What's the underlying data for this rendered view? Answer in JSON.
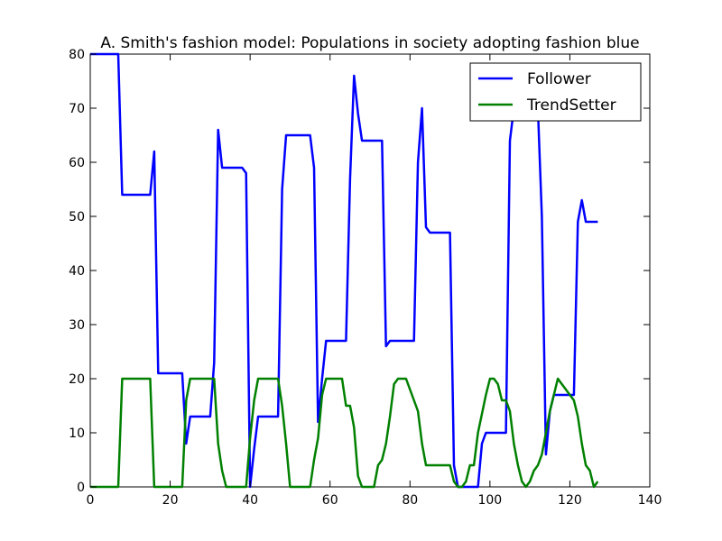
{
  "chart_data": {
    "type": "line",
    "title": "A. Smith's fashion model: Populations in society adopting fashion blue",
    "xlabel": "",
    "ylabel": "",
    "xlim": [
      0,
      140
    ],
    "ylim": [
      0,
      80
    ],
    "xticks": [
      0,
      20,
      40,
      60,
      80,
      100,
      120,
      140
    ],
    "yticks": [
      0,
      10,
      20,
      30,
      40,
      50,
      60,
      70,
      80
    ],
    "grid": false,
    "legend_position": "top-right",
    "series": [
      {
        "name": "Follower",
        "color": "#0000ff",
        "points": [
          [
            0,
            80
          ],
          [
            6,
            80
          ],
          [
            7,
            80
          ],
          [
            8,
            54
          ],
          [
            9,
            54
          ],
          [
            15,
            54
          ],
          [
            16,
            62
          ],
          [
            17,
            21
          ],
          [
            18,
            21
          ],
          [
            23,
            21
          ],
          [
            24,
            8
          ],
          [
            25,
            13
          ],
          [
            30,
            13
          ],
          [
            31,
            23
          ],
          [
            32,
            66
          ],
          [
            33,
            59
          ],
          [
            38,
            59
          ],
          [
            39,
            58
          ],
          [
            40,
            0
          ],
          [
            41,
            7
          ],
          [
            42,
            13
          ],
          [
            47,
            13
          ],
          [
            48,
            55
          ],
          [
            49,
            65
          ],
          [
            55,
            65
          ],
          [
            56,
            59
          ],
          [
            57,
            12
          ],
          [
            58,
            20
          ],
          [
            59,
            27
          ],
          [
            64,
            27
          ],
          [
            65,
            57
          ],
          [
            66,
            76
          ],
          [
            67,
            69
          ],
          [
            68,
            64
          ],
          [
            73,
            64
          ],
          [
            74,
            26
          ],
          [
            75,
            27
          ],
          [
            81,
            27
          ],
          [
            82,
            60
          ],
          [
            83,
            70
          ],
          [
            84,
            48
          ],
          [
            85,
            47
          ],
          [
            90,
            47
          ],
          [
            91,
            4
          ],
          [
            92,
            0
          ],
          [
            97,
            0
          ],
          [
            98,
            8
          ],
          [
            99,
            10
          ],
          [
            104,
            10
          ],
          [
            105,
            64
          ],
          [
            106,
            70
          ],
          [
            112,
            70
          ],
          [
            113,
            50
          ],
          [
            114,
            6
          ],
          [
            115,
            14
          ],
          [
            116,
            17
          ],
          [
            121,
            17
          ],
          [
            122,
            49
          ],
          [
            123,
            53
          ],
          [
            124,
            49
          ],
          [
            127,
            49
          ]
        ]
      },
      {
        "name": "TrendSetter",
        "color": "#008000",
        "points": [
          [
            0,
            0
          ],
          [
            7,
            0
          ],
          [
            8,
            20
          ],
          [
            15,
            20
          ],
          [
            16,
            0
          ],
          [
            23,
            0
          ],
          [
            24,
            16
          ],
          [
            25,
            20
          ],
          [
            31,
            20
          ],
          [
            32,
            8
          ],
          [
            33,
            3
          ],
          [
            34,
            0
          ],
          [
            39,
            0
          ],
          [
            40,
            9
          ],
          [
            41,
            16
          ],
          [
            42,
            20
          ],
          [
            47,
            20
          ],
          [
            48,
            15
          ],
          [
            49,
            8
          ],
          [
            50,
            0
          ],
          [
            55,
            0
          ],
          [
            56,
            5
          ],
          [
            57,
            9
          ],
          [
            58,
            17
          ],
          [
            59,
            20
          ],
          [
            63,
            20
          ],
          [
            64,
            15
          ],
          [
            65,
            15
          ],
          [
            66,
            11
          ],
          [
            67,
            2
          ],
          [
            68,
            0
          ],
          [
            71,
            0
          ],
          [
            72,
            4
          ],
          [
            73,
            5
          ],
          [
            74,
            8
          ],
          [
            75,
            13
          ],
          [
            76,
            19
          ],
          [
            77,
            20
          ],
          [
            79,
            20
          ],
          [
            82,
            14
          ],
          [
            83,
            8
          ],
          [
            84,
            4
          ],
          [
            90,
            4
          ],
          [
            91,
            1
          ],
          [
            92,
            0
          ],
          [
            93,
            0
          ],
          [
            94,
            1
          ],
          [
            95,
            4
          ],
          [
            96,
            4
          ],
          [
            97,
            10
          ],
          [
            99,
            17
          ],
          [
            100,
            20
          ],
          [
            101,
            20
          ],
          [
            102,
            19
          ],
          [
            103,
            16
          ],
          [
            104,
            16
          ],
          [
            105,
            14
          ],
          [
            106,
            8
          ],
          [
            107,
            4
          ],
          [
            108,
            1
          ],
          [
            109,
            0
          ],
          [
            110,
            1
          ],
          [
            111,
            3
          ],
          [
            112,
            4
          ],
          [
            113,
            6
          ],
          [
            114,
            10
          ],
          [
            115,
            14
          ],
          [
            116,
            17
          ],
          [
            117,
            20
          ],
          [
            121,
            16
          ],
          [
            122,
            13
          ],
          [
            123,
            8
          ],
          [
            124,
            4
          ],
          [
            125,
            3
          ],
          [
            126,
            0
          ],
          [
            127,
            1
          ]
        ]
      }
    ]
  }
}
